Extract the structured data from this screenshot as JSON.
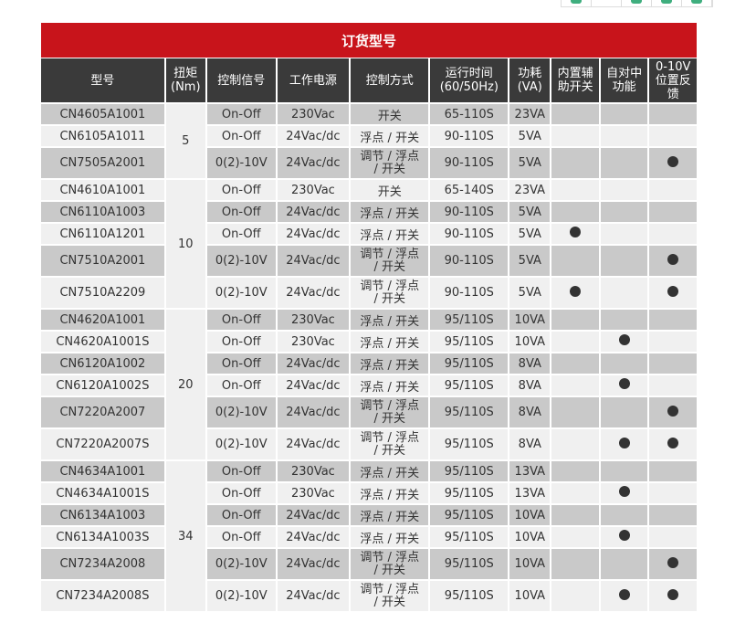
{
  "top_buttons": [
    "btn1",
    "btn2",
    "btn3",
    "btn4",
    "btn5"
  ],
  "title": "订货型号",
  "headers": [
    "型号",
    "扭矩\n(Nm)",
    "控制信号",
    "工作电源",
    "控制方式",
    "运行时间\n(60/50Hz)",
    "功耗\n(VA)",
    "内置辅\n助开关",
    "自对中\n功能",
    "0-10V\n位置反\n馈"
  ],
  "groups": [
    {
      "torque": "5",
      "rows": [
        [
          "CN4605A1001",
          "On-Off",
          "230Vac",
          "开关",
          "65-110S",
          "23VA",
          false,
          false,
          false
        ],
        [
          "CN6105A1011",
          "On-Off",
          "24Vac/dc",
          "浮点 / 开关",
          "90-110S",
          "5VA",
          false,
          false,
          false
        ],
        [
          "CN7505A2001",
          "0(2)-10V",
          "24Vac/dc",
          "调节 / 浮点\n/ 开关",
          "90-110S",
          "5VA",
          false,
          false,
          true
        ]
      ]
    },
    {
      "torque": "10",
      "rows": [
        [
          "CN4610A1001",
          "On-Off",
          "230Vac",
          "开关",
          "65-140S",
          "23VA",
          false,
          false,
          false
        ],
        [
          "CN6110A1003",
          "On-Off",
          "24Vac/dc",
          "浮点 / 开关",
          "90-110S",
          "5VA",
          false,
          false,
          false
        ],
        [
          "CN6110A1201",
          "On-Off",
          "24Vac/dc",
          "浮点 / 开关",
          "90-110S",
          "5VA",
          true,
          false,
          false
        ],
        [
          "CN7510A2001",
          "0(2)-10V",
          "24Vac/dc",
          "调节 / 浮点\n/ 开关",
          "90-110S",
          "5VA",
          false,
          false,
          true
        ],
        [
          "CN7510A2209",
          "0(2)-10V",
          "24Vac/dc",
          "调节 / 浮点\n/ 开关",
          "90-110S",
          "5VA",
          true,
          false,
          true
        ]
      ]
    },
    {
      "torque": "20",
      "rows": [
        [
          "CN4620A1001",
          "On-Off",
          "230Vac",
          "浮点 / 开关",
          "95/110S",
          "10VA",
          false,
          false,
          false
        ],
        [
          "CN4620A1001S",
          "On-Off",
          "230Vac",
          "浮点 / 开关",
          "95/110S",
          "10VA",
          false,
          true,
          false
        ],
        [
          "CN6120A1002",
          "On-Off",
          "24Vac/dc",
          "浮点 / 开关",
          "95/110S",
          "8VA",
          false,
          false,
          false
        ],
        [
          "CN6120A1002S",
          "On-Off",
          "24Vac/dc",
          "浮点 / 开关",
          "95/110S",
          "8VA",
          false,
          true,
          false
        ],
        [
          "CN7220A2007",
          "0(2)-10V",
          "24Vac/dc",
          "调节 / 浮点\n/ 开关",
          "95/110S",
          "8VA",
          false,
          false,
          true
        ],
        [
          "CN7220A2007S",
          "0(2)-10V",
          "24Vac/dc",
          "调节 / 浮点\n/ 开关",
          "95/110S",
          "8VA",
          false,
          true,
          true
        ]
      ]
    },
    {
      "torque": "34",
      "rows": [
        [
          "CN4634A1001",
          "On-Off",
          "230Vac",
          "浮点 / 开关",
          "95/110S",
          "13VA",
          false,
          false,
          false
        ],
        [
          "CN4634A1001S",
          "On-Off",
          "230Vac",
          "浮点 / 开关",
          "95/110S",
          "13VA",
          false,
          true,
          false
        ],
        [
          "CN6134A1003",
          "On-Off",
          "24Vac/dc",
          "浮点 / 开关",
          "95/110S",
          "10VA",
          false,
          false,
          false
        ],
        [
          "CN6134A1003S",
          "On-Off",
          "24Vac/dc",
          "浮点 / 开关",
          "95/110S",
          "10VA",
          false,
          true,
          false
        ],
        [
          "CN7234A2008",
          "0(2)-10V",
          "24Vac/dc",
          "调节 / 浮点\n/ 开关",
          "95/110S",
          "10VA",
          false,
          false,
          true
        ],
        [
          "CN7234A2008S",
          "0(2)-10V",
          "24Vac/dc",
          "调节 / 浮点\n/ 开关",
          "95/110S",
          "10VA",
          false,
          true,
          true
        ]
      ]
    }
  ]
}
